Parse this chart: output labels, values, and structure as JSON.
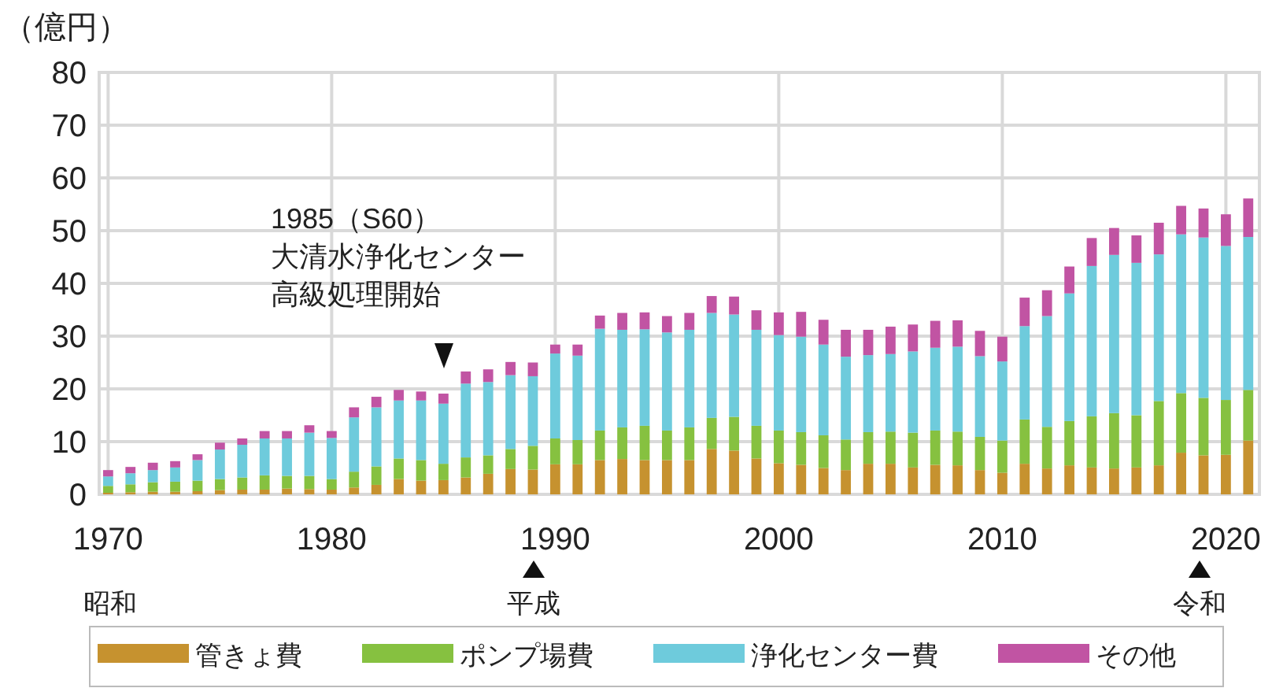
{
  "chart_data": {
    "type": "bar",
    "stacked": true,
    "ylabel": "（億円）",
    "x": [
      1970,
      1971,
      1972,
      1973,
      1974,
      1975,
      1976,
      1977,
      1978,
      1979,
      1980,
      1981,
      1982,
      1983,
      1984,
      1985,
      1986,
      1987,
      1988,
      1989,
      1990,
      1991,
      1992,
      1993,
      1994,
      1995,
      1996,
      1997,
      1998,
      1999,
      2000,
      2001,
      2002,
      2003,
      2004,
      2005,
      2006,
      2007,
      2008,
      2009,
      2010,
      2011,
      2012,
      2013,
      2014,
      2015,
      2016,
      2017,
      2018,
      2019,
      2020,
      2021
    ],
    "xlim": [
      1969.6,
      2021.5
    ],
    "xticks": [
      1970,
      1980,
      1990,
      2000,
      2010,
      2020
    ],
    "ylim": [
      0,
      80
    ],
    "yticks": [
      0,
      10,
      20,
      30,
      40,
      50,
      60,
      70,
      80
    ],
    "grid": true,
    "legend": "bottom",
    "series": [
      {
        "name": "管きょ費",
        "color": "#c6922f",
        "values": [
          0.3,
          0.4,
          0.5,
          0.5,
          0.6,
          0.8,
          0.9,
          0.9,
          1.1,
          1.0,
          0.9,
          1.3,
          1.8,
          2.9,
          2.6,
          2.7,
          3.2,
          3.9,
          4.8,
          4.7,
          5.7,
          5.7,
          6.5,
          6.7,
          6.5,
          6.5,
          6.5,
          8.6,
          8.3,
          6.8,
          5.9,
          5.6,
          5.0,
          4.6,
          5.8,
          5.8,
          5.1,
          5.6,
          5.5,
          4.6,
          4.1,
          5.8,
          4.9,
          5.5,
          5.1,
          4.9,
          5.1,
          5.5,
          7.9,
          7.4,
          7.5,
          10.2
        ]
      },
      {
        "name": "ポンプ場費",
        "color": "#86c140",
        "values": [
          1.3,
          1.5,
          1.8,
          1.9,
          2.0,
          2.1,
          2.3,
          2.7,
          2.4,
          2.5,
          2.0,
          3.0,
          3.5,
          3.9,
          3.9,
          3.1,
          3.8,
          3.5,
          3.8,
          4.5,
          4.9,
          4.6,
          5.6,
          6.0,
          6.5,
          5.6,
          6.2,
          5.9,
          6.4,
          6.2,
          6.2,
          6.2,
          6.2,
          5.8,
          6.0,
          6.1,
          6.6,
          6.5,
          6.4,
          6.3,
          6.1,
          8.4,
          7.9,
          8.4,
          9.7,
          10.5,
          9.9,
          12.2,
          11.3,
          10.9,
          10.4,
          9.6
        ]
      },
      {
        "name": "浄化センター費",
        "color": "#6ecbdc",
        "values": [
          1.8,
          2.1,
          2.3,
          2.7,
          3.9,
          5.6,
          6.2,
          7.0,
          7.1,
          8.2,
          7.8,
          10.3,
          11.2,
          11.0,
          11.3,
          11.4,
          14.0,
          13.9,
          14.0,
          13.2,
          16.1,
          16.0,
          19.3,
          18.5,
          18.3,
          18.6,
          18.5,
          19.9,
          19.4,
          18.2,
          18.1,
          18.1,
          17.2,
          15.7,
          14.6,
          14.7,
          15.4,
          15.7,
          16.1,
          15.3,
          15.0,
          17.7,
          21.0,
          24.2,
          28.5,
          30.0,
          28.9,
          27.8,
          30.1,
          30.4,
          29.2,
          29.0
        ]
      },
      {
        "name": "その他",
        "color": "#c154a3",
        "values": [
          1.2,
          1.2,
          1.4,
          1.2,
          1.1,
          1.3,
          1.2,
          1.4,
          1.4,
          1.4,
          1.3,
          1.9,
          2.0,
          2.0,
          1.7,
          1.9,
          2.3,
          2.4,
          2.5,
          2.6,
          1.7,
          2.1,
          2.5,
          3.2,
          3.2,
          3.1,
          3.2,
          3.2,
          3.4,
          3.7,
          4.3,
          4.7,
          4.7,
          5.1,
          4.8,
          5.2,
          5.1,
          5.1,
          5.0,
          4.8,
          4.7,
          5.4,
          4.9,
          5.1,
          5.3,
          5.1,
          5.2,
          6.0,
          5.4,
          5.5,
          6.0,
          7.3
        ]
      }
    ],
    "annotations": [
      "1985（S60）",
      "大清水浄化センター高級処理開始",
      "昭和",
      "平成",
      "令和"
    ]
  }
}
